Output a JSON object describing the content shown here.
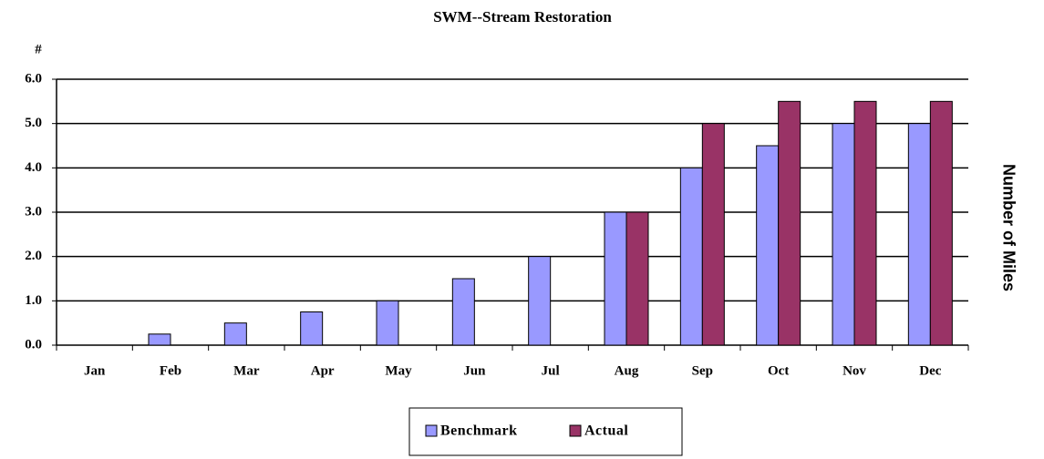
{
  "chart_data": {
    "type": "bar",
    "title": "SWM--Stream Restoration",
    "y_label": "#",
    "y2_label": "Number of Miles",
    "categories": [
      "Jan",
      "Feb",
      "Mar",
      "Apr",
      "May",
      "Jun",
      "Jul",
      "Aug",
      "Sep",
      "Oct",
      "Nov",
      "Dec"
    ],
    "series": [
      {
        "name": "Benchmark",
        "color": "#9999ff",
        "values": [
          0,
          0.25,
          0.5,
          0.75,
          1.0,
          1.5,
          2.0,
          3.0,
          4.0,
          4.5,
          5.0,
          5.0
        ]
      },
      {
        "name": "Actual",
        "color": "#993366",
        "values": [
          null,
          null,
          null,
          null,
          null,
          null,
          null,
          3.0,
          5.0,
          5.5,
          5.5,
          5.5
        ]
      }
    ],
    "ylim": [
      0,
      6
    ],
    "yticks": [
      {
        "value": 0,
        "label": "0.0"
      },
      {
        "value": 1,
        "label": "1.0"
      },
      {
        "value": 2,
        "label": "2.0"
      },
      {
        "value": 3,
        "label": "3.0"
      },
      {
        "value": 4,
        "label": "4.0"
      },
      {
        "value": 5,
        "label": "5.0"
      },
      {
        "value": 6,
        "label": "6.0"
      }
    ],
    "grid": true,
    "legend": "bottom"
  }
}
